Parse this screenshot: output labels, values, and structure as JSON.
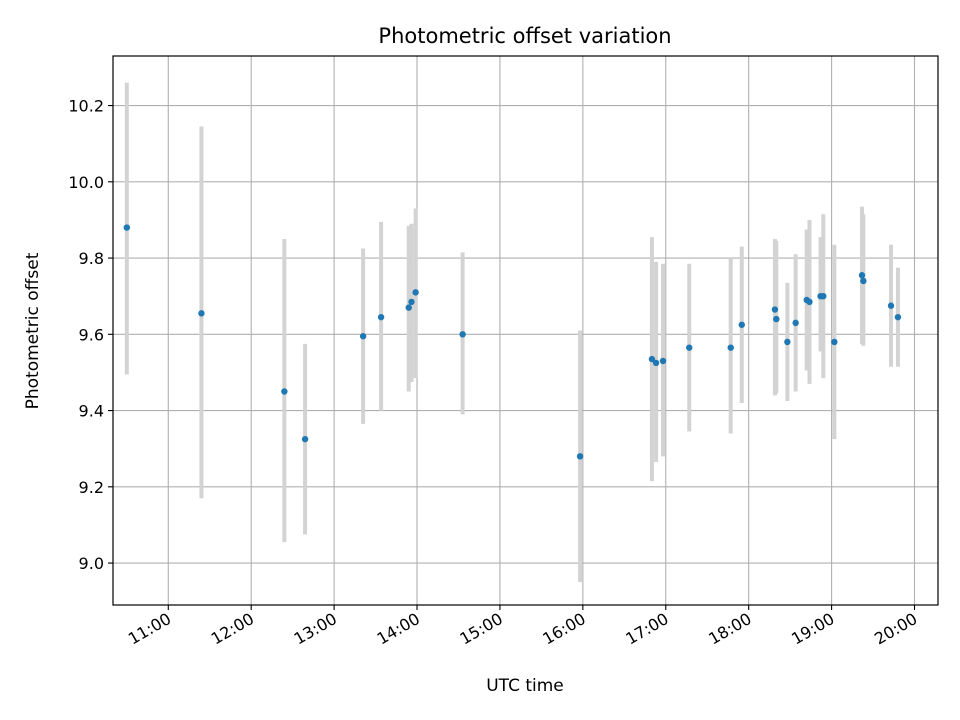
{
  "chart_data": {
    "type": "scatter",
    "title": "Photometric offset variation",
    "xlabel": "UTC time",
    "ylabel": "Photometric offset",
    "grid": true,
    "xlim": [
      "10:20",
      "20:17"
    ],
    "ylim": [
      8.89,
      10.33
    ],
    "x_ticks": [
      "11:00",
      "12:00",
      "13:00",
      "14:00",
      "15:00",
      "16:00",
      "17:00",
      "18:00",
      "19:00",
      "20:00"
    ],
    "y_ticks": [
      9.0,
      9.2,
      9.4,
      9.6,
      9.8,
      10.0,
      10.2
    ],
    "y_tick_labels": [
      "9.0",
      "9.2",
      "9.4",
      "9.6",
      "9.8",
      "10.0",
      "10.2"
    ],
    "point_color": "#1f77b4",
    "errorbar_color": "#d3d3d3",
    "points": [
      {
        "time": "10:30",
        "value": 9.88,
        "low": 9.495,
        "high": 10.26
      },
      {
        "time": "11:24",
        "value": 9.655,
        "low": 9.17,
        "high": 10.145
      },
      {
        "time": "12:24",
        "value": 9.45,
        "low": 9.055,
        "high": 9.85
      },
      {
        "time": "12:39",
        "value": 9.325,
        "low": 9.075,
        "high": 9.575
      },
      {
        "time": "13:21",
        "value": 9.595,
        "low": 9.365,
        "high": 9.825
      },
      {
        "time": "13:34",
        "value": 9.645,
        "low": 9.4,
        "high": 9.895
      },
      {
        "time": "13:54",
        "value": 9.67,
        "low": 9.45,
        "high": 9.885
      },
      {
        "time": "13:56",
        "value": 9.685,
        "low": 9.475,
        "high": 9.89
      },
      {
        "time": "13:59",
        "value": 9.71,
        "low": 9.485,
        "high": 9.93
      },
      {
        "time": "14:33",
        "value": 9.6,
        "low": 9.39,
        "high": 9.815
      },
      {
        "time": "15:58",
        "value": 9.28,
        "low": 8.95,
        "high": 9.61
      },
      {
        "time": "16:50",
        "value": 9.535,
        "low": 9.215,
        "high": 9.855
      },
      {
        "time": "16:53",
        "value": 9.525,
        "low": 9.265,
        "high": 9.79
      },
      {
        "time": "16:58",
        "value": 9.53,
        "low": 9.28,
        "high": 9.785
      },
      {
        "time": "17:17",
        "value": 9.565,
        "low": 9.345,
        "high": 9.785
      },
      {
        "time": "17:47",
        "value": 9.565,
        "low": 9.34,
        "high": 9.8
      },
      {
        "time": "17:55",
        "value": 9.625,
        "low": 9.42,
        "high": 9.83
      },
      {
        "time": "18:19",
        "value": 9.665,
        "low": 9.44,
        "high": 9.85
      },
      {
        "time": "18:20",
        "value": 9.64,
        "low": 9.445,
        "high": 9.845
      },
      {
        "time": "18:28",
        "value": 9.58,
        "low": 9.425,
        "high": 9.735
      },
      {
        "time": "18:34",
        "value": 9.63,
        "low": 9.45,
        "high": 9.81
      },
      {
        "time": "18:42",
        "value": 9.69,
        "low": 9.505,
        "high": 9.875
      },
      {
        "time": "18:44",
        "value": 9.685,
        "low": 9.47,
        "high": 9.9
      },
      {
        "time": "18:52",
        "value": 9.7,
        "low": 9.555,
        "high": 9.855
      },
      {
        "time": "18:54",
        "value": 9.7,
        "low": 9.485,
        "high": 9.915
      },
      {
        "time": "19:02",
        "value": 9.58,
        "low": 9.325,
        "high": 9.835
      },
      {
        "time": "19:22",
        "value": 9.755,
        "low": 9.575,
        "high": 9.935
      },
      {
        "time": "19:23",
        "value": 9.74,
        "low": 9.57,
        "high": 9.915
      },
      {
        "time": "19:43",
        "value": 9.675,
        "low": 9.515,
        "high": 9.835
      },
      {
        "time": "19:48",
        "value": 9.645,
        "low": 9.515,
        "high": 9.775
      }
    ]
  }
}
